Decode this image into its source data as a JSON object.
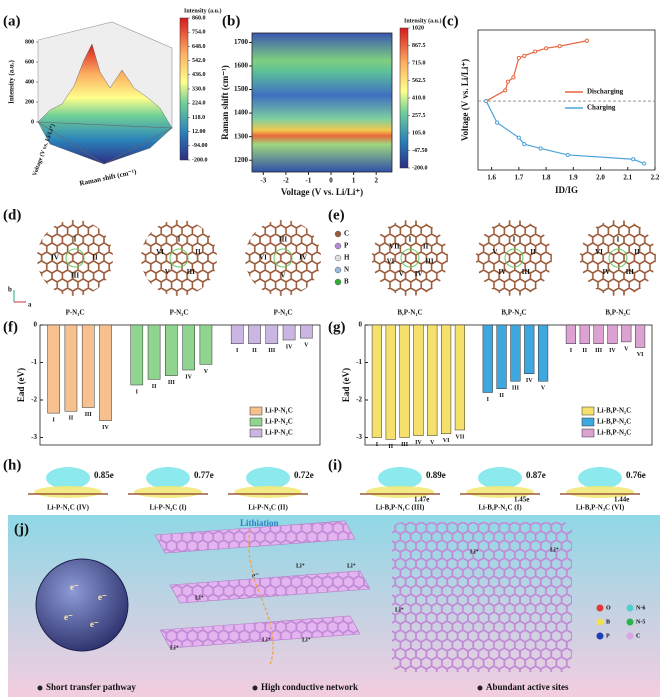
{
  "panel_labels": [
    "(a)",
    "(b)",
    "(c)",
    "(d)",
    "(e)",
    "(f)",
    "(g)",
    "(h)",
    "(i)",
    "(j)"
  ],
  "chart_data": [
    {
      "type": "surface",
      "z_label": "Intensity (a.u.)",
      "y_label": "Voltage (V vs. Li/Li⁺)",
      "x_label": "Raman shift (cm⁻¹)",
      "zlim": [
        0,
        800
      ],
      "zticks": [
        0,
        200,
        400,
        600,
        800
      ],
      "colorbar": {
        "title": "Intensity (a.u.)",
        "lim": [
          -200,
          860
        ],
        "ticks": [
          {
            "value": 860,
            "label": "860.0"
          },
          {
            "value": 754,
            "label": "754.0"
          },
          {
            "value": 648,
            "label": "648.0"
          },
          {
            "value": 542,
            "label": "542.0"
          },
          {
            "value": 436,
            "label": "436.0"
          },
          {
            "value": 330,
            "label": "330.0"
          },
          {
            "value": 224,
            "label": "224.0"
          },
          {
            "value": 118,
            "label": "118.0"
          },
          {
            "value": 12,
            "label": "12.00"
          },
          {
            "value": -94,
            "label": "-94.00"
          },
          {
            "value": -200,
            "label": "-200.0"
          }
        ]
      }
    },
    {
      "type": "heatmap",
      "x_label": "Voltage (V vs. Li/Li⁺)",
      "y_label": "Raman shift (cm⁻¹)",
      "xlim": [
        -3.5,
        2.7
      ],
      "xticks": [
        -3,
        -2,
        -1,
        0,
        1,
        2
      ],
      "ylim": [
        1150,
        1740
      ],
      "yticks": [
        1200,
        1300,
        1400,
        1500,
        1600,
        1700
      ],
      "colorbar": {
        "title": "Intensity (a.u.)",
        "lim": [
          -200,
          1020
        ],
        "ticks": [
          1020,
          867.5,
          {
            "value": 715,
            "label": "715.0"
          },
          562.5,
          {
            "value": 410,
            "label": "410.0"
          },
          257.5,
          {
            "value": 105,
            "label": "105.0"
          },
          {
            "value": -47.5,
            "label": "-47.50"
          },
          {
            "value": -200,
            "label": "-200.0"
          }
        ]
      }
    },
    {
      "type": "line",
      "x_label": "ID/IG",
      "y_label": "Voltage (V vs. Li/Li⁺)",
      "xlim": [
        1.55,
        2.2
      ],
      "xticks": [
        1.6,
        1.7,
        1.8,
        1.9,
        {
          "value": 2,
          "label": "2.0"
        },
        2.1,
        2.2
      ],
      "ylim": [
        -3.2,
        3.3
      ],
      "series": [
        {
          "name": "Discharging",
          "color": "#e8643c",
          "x": [
            1.58,
            1.65,
            1.66,
            1.68,
            1.7,
            1.72,
            1.76,
            1.8,
            1.85,
            1.95
          ],
          "values": [
            0,
            0.5,
            0.9,
            1.1,
            2.0,
            2.1,
            2.3,
            2.45,
            2.55,
            2.8
          ]
        },
        {
          "name": "Charging",
          "color": "#4aa3d8",
          "x": [
            1.58,
            1.62,
            1.7,
            1.72,
            1.78,
            1.88,
            2.12,
            2.16
          ],
          "values": [
            0,
            -1,
            -1.7,
            -2.0,
            -2.2,
            -2.5,
            -2.7,
            -2.9
          ]
        }
      ]
    },
    {
      "type": "bar",
      "y_label": "Ead (eV)",
      "ylim": [
        -3.2,
        0
      ],
      "yticks": [
        0,
        -1,
        -2,
        -3
      ],
      "series": [
        {
          "name": "Li-P-N₁C",
          "color": "#f7c08f",
          "categories": [
            "I",
            "II",
            "III",
            "IV"
          ],
          "values": [
            -2.35,
            -2.3,
            -2.2,
            -2.55
          ]
        },
        {
          "name": "Li-P-N₂C",
          "color": "#8fd58f",
          "categories": [
            "I",
            "II",
            "III",
            "IV",
            "V"
          ],
          "values": [
            -1.6,
            -1.45,
            -1.35,
            -1.2,
            -1.05
          ]
        },
        {
          "name": "Li-P-N₃C",
          "color": "#cbb6e3",
          "categories": [
            "I",
            "II",
            "III",
            "IV",
            "V"
          ],
          "values": [
            -0.5,
            -0.5,
            -0.5,
            -0.4,
            -0.35
          ]
        }
      ]
    },
    {
      "type": "bar",
      "y_label": "Ead (eV)",
      "ylim": [
        -3.2,
        0
      ],
      "yticks": [
        0,
        -1,
        -2,
        -3
      ],
      "series": [
        {
          "name": "Li-B,P-N₁C",
          "color": "#f4e06a",
          "categories": [
            "I",
            "II",
            "III",
            "IV",
            "V",
            "VI",
            "VII"
          ],
          "values": [
            -3.0,
            -3.05,
            -3.0,
            -2.95,
            -2.95,
            -2.9,
            -2.8
          ]
        },
        {
          "name": "Li-B,P-N₂C",
          "color": "#3fa7df",
          "categories": [
            "I",
            "II",
            "III",
            "IV",
            "V"
          ],
          "values": [
            -1.8,
            -1.7,
            -1.5,
            -1.3,
            -1.5
          ]
        },
        {
          "name": "Li-B,P-N₃C",
          "color": "#dca2d2",
          "categories": [
            "I",
            "II",
            "III",
            "IV",
            "V",
            "VI"
          ],
          "values": [
            -0.5,
            -0.5,
            -0.5,
            -0.5,
            -0.45,
            -0.6
          ]
        }
      ]
    }
  ],
  "panel_d": {
    "axes": [
      "b",
      "a"
    ],
    "structures": [
      {
        "name": "P-N₁C",
        "sites": [
          "I",
          "II",
          "III",
          "IV"
        ]
      },
      {
        "name": "P-N₂C",
        "sites": [
          "I",
          "II",
          "III",
          "V",
          "VI"
        ]
      },
      {
        "name": "P-N₃C",
        "sites": [
          "III",
          "IV",
          "V",
          "VI"
        ]
      }
    ]
  },
  "panel_e": {
    "legend": [
      "C",
      "P",
      "H",
      "N",
      "B"
    ],
    "structures": [
      {
        "name": "B,P-N₁C",
        "sites": [
          "I",
          "II",
          "III",
          "IV",
          "V",
          "VI",
          "VII"
        ]
      },
      {
        "name": "B,P-N₂C",
        "sites": [
          "I",
          "II",
          "III",
          "IV",
          "V"
        ]
      },
      {
        "name": "B,P-N₃C",
        "sites": [
          "I",
          "II",
          "III",
          "IV",
          "VI"
        ]
      }
    ]
  },
  "panel_h": {
    "items": [
      {
        "charge": "0.85e",
        "label": "Li-P-N₁C (IV)"
      },
      {
        "charge": "0.77e",
        "label": "Li-P-N₂C (I)"
      },
      {
        "charge": "0.72e",
        "label": "Li-P-N₃C (II)"
      }
    ]
  },
  "panel_i": {
    "items": [
      {
        "charge": "0.89e",
        "charge2": "1.47e",
        "label": "Li-B,P-N₁C (III)"
      },
      {
        "charge": "0.87e",
        "charge2": "1.45e",
        "label": "Li-B,P-N₂C (I)"
      },
      {
        "charge": "0.76e",
        "charge2": "1.44e",
        "label": "Li-B,P-N₃C (VI)"
      }
    ]
  },
  "panel_j": {
    "title": "Lithiation",
    "li_labels": [
      "Li⁺",
      "Li⁺",
      "Li⁺",
      "Li⁺",
      "Li⁺",
      "Li⁺",
      "Li⁺",
      "Li⁺",
      "Li⁺"
    ],
    "e_labels": [
      "e⁻",
      "e⁻",
      "e⁻",
      "e⁻",
      "e⁻"
    ],
    "legend": [
      "O",
      "N-6",
      "B",
      "N-5",
      "P",
      "C"
    ],
    "features": [
      "Short transfer pathway",
      "High conductive network",
      "Abundant active sites"
    ]
  }
}
